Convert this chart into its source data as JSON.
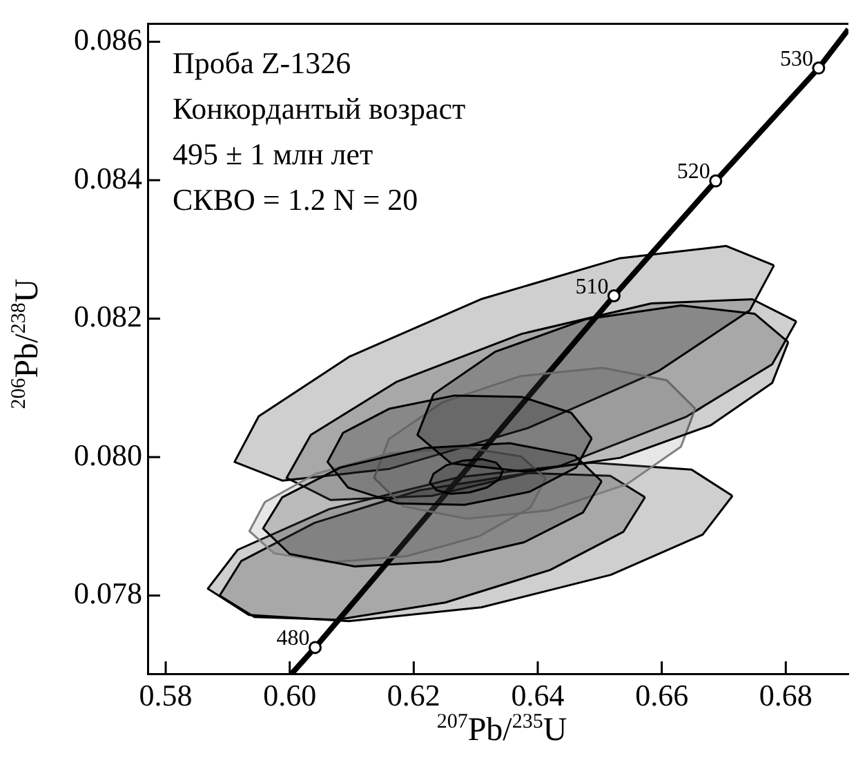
{
  "chart_data": {
    "type": "line",
    "xlabel": "$^{207}$Pb/$^{235}$U",
    "ylabel": "$^{206}$Pb/$^{238}$U",
    "xlim": [
      0.5771,
      0.6901
    ],
    "ylim": [
      0.07687,
      0.08626
    ],
    "xticks": [
      0.58,
      {
        "value": 0.6,
        "label": "0.60"
      },
      0.62,
      0.64,
      0.66,
      0.68
    ],
    "yticks": [
      0.078,
      {
        "value": 0.08,
        "label": "0.080"
      },
      0.082,
      0.084,
      0.086
    ],
    "grid": false,
    "legend": false,
    "marker": "none",
    "line_style": "solid",
    "annotations": [
      "Проба Z-1326",
      "Конкордантый возраст",
      "495 ± 1 млн лет",
      "СКВО = 1.2 N = 20",
      {
        "text": "480",
        "x": 0.6041,
        "y": 0.07725
      },
      {
        "text": "510",
        "x": 0.6523,
        "y": 0.08233
      },
      {
        "text": "520",
        "x": 0.6687,
        "y": 0.08399
      },
      {
        "text": "530",
        "x": 0.6853,
        "y": 0.08562
      }
    ],
    "series": [
      {
        "type": "line",
        "color": "#000000",
        "x": [
          0.6003,
          0.6041,
          0.6523,
          0.6687,
          0.6853,
          0.6901
        ],
        "values": [
          0.07687,
          0.07725,
          0.08233,
          0.08399,
          0.08562,
          0.08618
        ]
      },
      {
        "type": "area",
        "color": "#000000",
        "x": [
          0.6781,
          0.6704,
          0.6531,
          0.6308,
          0.6096,
          0.595,
          0.5911,
          0.5988,
          0.6161,
          0.6384,
          0.6596,
          0.6742,
          0.6781
        ],
        "values": [
          0.08277,
          0.08305,
          0.08287,
          0.08228,
          0.08145,
          0.08059,
          0.07993,
          0.07966,
          0.07983,
          0.08042,
          0.08125,
          0.08212,
          0.08277
        ]
      },
      {
        "type": "area",
        "color": "#000000",
        "x": [
          0.6714,
          0.6648,
          0.6487,
          0.6273,
          0.6064,
          0.5916,
          0.5868,
          0.5934,
          0.6095,
          0.6309,
          0.6518,
          0.6666,
          0.6714
        ],
        "values": [
          0.07944,
          0.07982,
          0.07992,
          0.07971,
          0.07925,
          0.07866,
          0.0781,
          0.07772,
          0.07763,
          0.07783,
          0.0783,
          0.07888,
          0.07944
        ]
      },
      {
        "type": "area",
        "color": "#000000",
        "x": [
          0.6817,
          0.6746,
          0.6583,
          0.6374,
          0.6173,
          0.6034,
          0.5995,
          0.6066,
          0.6229,
          0.6438,
          0.6639,
          0.6778,
          0.6817
        ],
        "values": [
          0.08196,
          0.08228,
          0.08222,
          0.08178,
          0.08109,
          0.08032,
          0.0797,
          0.07938,
          0.07944,
          0.07988,
          0.08058,
          0.08134,
          0.08196
        ]
      },
      {
        "type": "area",
        "color": "#000000",
        "x": [
          0.6573,
          0.6517,
          0.6384,
          0.6209,
          0.604,
          0.5922,
          0.5887,
          0.5943,
          0.6076,
          0.6251,
          0.642,
          0.6538,
          0.6573
        ],
        "values": [
          0.07942,
          0.07973,
          0.07977,
          0.07952,
          0.07905,
          0.0785,
          0.078,
          0.07769,
          0.07765,
          0.0779,
          0.07837,
          0.07892,
          0.07942
        ]
      },
      {
        "type": "area",
        "color": "#808080",
        "x": [
          0.6654,
          0.6608,
          0.6504,
          0.6372,
          0.6246,
          0.616,
          0.6136,
          0.6183,
          0.6285,
          0.6418,
          0.6544,
          0.6631,
          0.6654
        ],
        "values": [
          0.0807,
          0.08111,
          0.08129,
          0.08117,
          0.08079,
          0.08026,
          0.0797,
          0.07929,
          0.07911,
          0.07923,
          0.07961,
          0.08015,
          0.0807
        ]
      },
      {
        "type": "area",
        "color": "#808080",
        "x": [
          0.6413,
          0.6373,
          0.6281,
          0.616,
          0.6042,
          0.596,
          0.5935,
          0.5975,
          0.6067,
          0.6189,
          0.6306,
          0.6388,
          0.6413
        ],
        "values": [
          0.07969,
          0.08001,
          0.08014,
          0.08005,
          0.07976,
          0.07935,
          0.07893,
          0.07861,
          0.07848,
          0.07857,
          0.07886,
          0.07927,
          0.07969
        ]
      },
      {
        "type": "area",
        "color": "#000000",
        "x": [
          0.6804,
          0.675,
          0.6631,
          0.6477,
          0.6331,
          0.6232,
          0.6206,
          0.626,
          0.638,
          0.6533,
          0.6679,
          0.6778,
          0.6804
        ],
        "values": [
          0.08166,
          0.08207,
          0.08219,
          0.08199,
          0.08152,
          0.08091,
          0.08032,
          0.07991,
          0.07979,
          0.07999,
          0.08046,
          0.08107,
          0.08166
        ]
      },
      {
        "type": "area",
        "color": "#000000",
        "x": [
          0.6503,
          0.646,
          0.6355,
          0.6217,
          0.6082,
          0.5988,
          0.5957,
          0.6,
          0.6105,
          0.6243,
          0.6378,
          0.6473,
          0.6503
        ],
        "values": [
          0.07965,
          0.08002,
          0.0802,
          0.08013,
          0.07985,
          0.07942,
          0.07897,
          0.0786,
          0.07842,
          0.07849,
          0.07877,
          0.0792,
          0.07965
        ]
      },
      {
        "type": "area",
        "color": "#000000",
        "x": [
          0.6487,
          0.6454,
          0.6374,
          0.6266,
          0.6161,
          0.6086,
          0.6061,
          0.6094,
          0.6175,
          0.6282,
          0.6387,
          0.6462,
          0.6487
        ],
        "values": [
          0.08027,
          0.08064,
          0.08087,
          0.08089,
          0.0807,
          0.08035,
          0.07993,
          0.07956,
          0.07933,
          0.07931,
          0.0795,
          0.07985,
          0.08027
        ]
      },
      {
        "type": "area",
        "color": "#000000",
        "x": [
          0.6344,
          0.6333,
          0.631,
          0.628,
          0.6252,
          0.6232,
          0.6226,
          0.6237,
          0.626,
          0.629,
          0.6318,
          0.6338,
          0.6344
        ],
        "values": [
          0.07981,
          0.07992,
          0.07997,
          0.07995,
          0.07988,
          0.07976,
          0.07963,
          0.07952,
          0.07947,
          0.07949,
          0.07956,
          0.07968,
          0.07981
        ]
      },
      {
        "type": "scatter",
        "marker": "circle",
        "color": "#000000",
        "x": [
          0.6041,
          0.6523,
          0.6687,
          0.6853
        ],
        "values": [
          0.07725,
          0.08233,
          0.08399,
          0.08562
        ]
      }
    ]
  }
}
